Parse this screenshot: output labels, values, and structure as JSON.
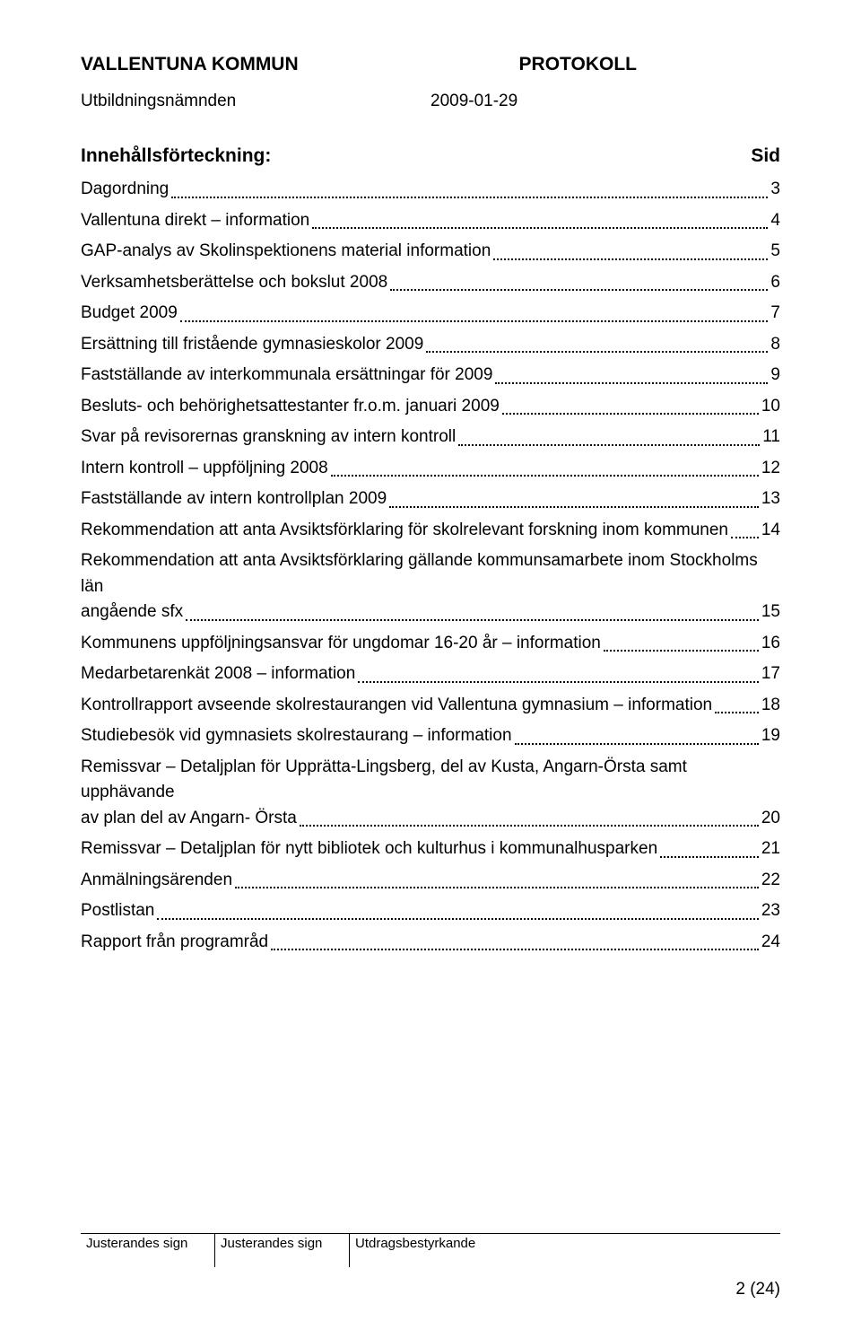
{
  "header": {
    "org": "VALLENTUNA KOMMUN",
    "doc_type": "PROTOKOLL",
    "committee": "Utbildningsnämnden",
    "date": "2009-01-29"
  },
  "toc": {
    "title": "Innehållsförteckning:",
    "page_label": "Sid",
    "entries": [
      {
        "label": "Dagordning",
        "page": "3"
      },
      {
        "label": "Vallentuna direkt – information",
        "page": "4"
      },
      {
        "label": "GAP-analys av Skolinspektionens material information",
        "page": "5"
      },
      {
        "label": "Verksamhetsberättelse och bokslut 2008",
        "page": "6"
      },
      {
        "label": "Budget 2009",
        "page": "7"
      },
      {
        "label": "Ersättning till fristående gymnasieskolor 2009",
        "page": "8"
      },
      {
        "label": "Fastställande av interkommunala ersättningar för 2009",
        "page": "9"
      },
      {
        "label": "Besluts- och behörighetsattestanter fr.o.m. januari 2009",
        "page": "10"
      },
      {
        "label": "Svar på revisorernas granskning av intern kontroll",
        "page": "11"
      },
      {
        "label": "Intern kontroll – uppföljning 2008",
        "page": "12"
      },
      {
        "label": "Fastställande av intern kontrollplan 2009",
        "page": "13"
      },
      {
        "label": "Rekommendation att anta Avsiktsförklaring för skolrelevant forskning inom kommunen",
        "page": "14"
      },
      {
        "label_line1": "Rekommendation att anta Avsiktsförklaring gällande kommunsamarbete inom Stockholms län",
        "label_line2": "angående sfx",
        "page": "15",
        "multiline": true
      },
      {
        "label": "Kommunens uppföljningsansvar för ungdomar 16-20 år – information",
        "page": "16"
      },
      {
        "label": "Medarbetarenkät 2008 – information",
        "page": "17"
      },
      {
        "label": "Kontrollrapport avseende skolrestaurangen vid Vallentuna gymnasium – information",
        "page": "18"
      },
      {
        "label": "Studiebesök vid gymnasiets skolrestaurang – information",
        "page": "19"
      },
      {
        "label_line1": "Remissvar – Detaljplan för Upprätta-Lingsberg, del av Kusta, Angarn-Örsta samt upphävande",
        "label_line2": "av plan del av Angarn- Örsta",
        "page": "20",
        "multiline": true
      },
      {
        "label": "Remissvar – Detaljplan för nytt bibliotek och kulturhus i kommunalhusparken",
        "page": "21"
      },
      {
        "label": "Anmälningsärenden",
        "page": "22"
      },
      {
        "label": "Postlistan",
        "page": "23"
      },
      {
        "label": "Rapport från programråd",
        "page": "24"
      }
    ]
  },
  "footer": {
    "cell1": "Justerandes sign",
    "cell2": "Justerandes sign",
    "cell3": "Utdragsbestyrkande"
  },
  "page_number": "2 (24)"
}
